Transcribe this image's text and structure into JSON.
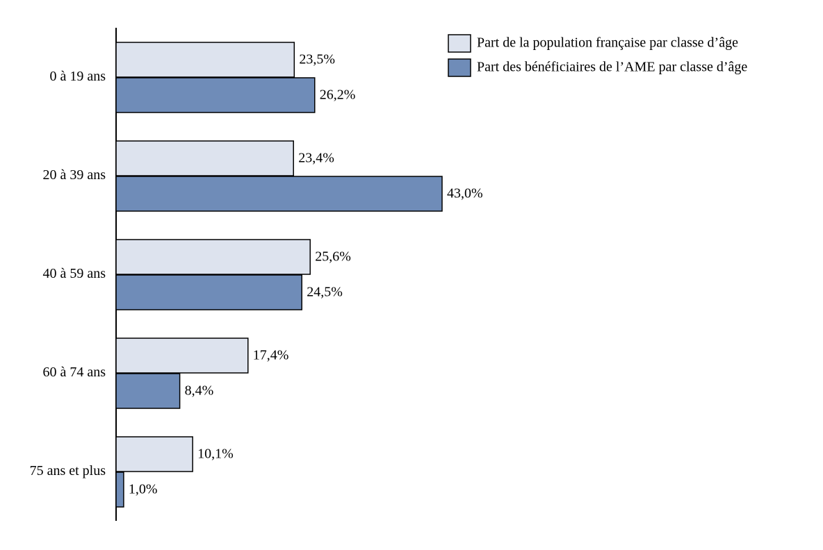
{
  "chart_data": {
    "type": "bar",
    "orientation": "horizontal",
    "categories": [
      "0 à 19 ans",
      "20 à 39 ans",
      "40 à 59 ans",
      "60 à 74 ans",
      "75 ans et plus"
    ],
    "series": [
      {
        "name": "Part de la population française par classe d’âge",
        "color": "#dde3ee",
        "values": [
          23.5,
          23.4,
          25.6,
          17.4,
          10.1
        ],
        "value_labels": [
          "23,5%",
          "23,4%",
          "25,6%",
          "17,4%",
          "10,1%"
        ]
      },
      {
        "name": "Part des bénéficiaires de l’AME par classe d’âge",
        "color": "#6f8cb8",
        "values": [
          26.2,
          43.0,
          24.5,
          8.4,
          1.0
        ],
        "value_labels": [
          "26,2%",
          "43,0%",
          "24,5%",
          "8,4%",
          "1,0%"
        ]
      }
    ],
    "legend": "top-right",
    "grid": false
  }
}
